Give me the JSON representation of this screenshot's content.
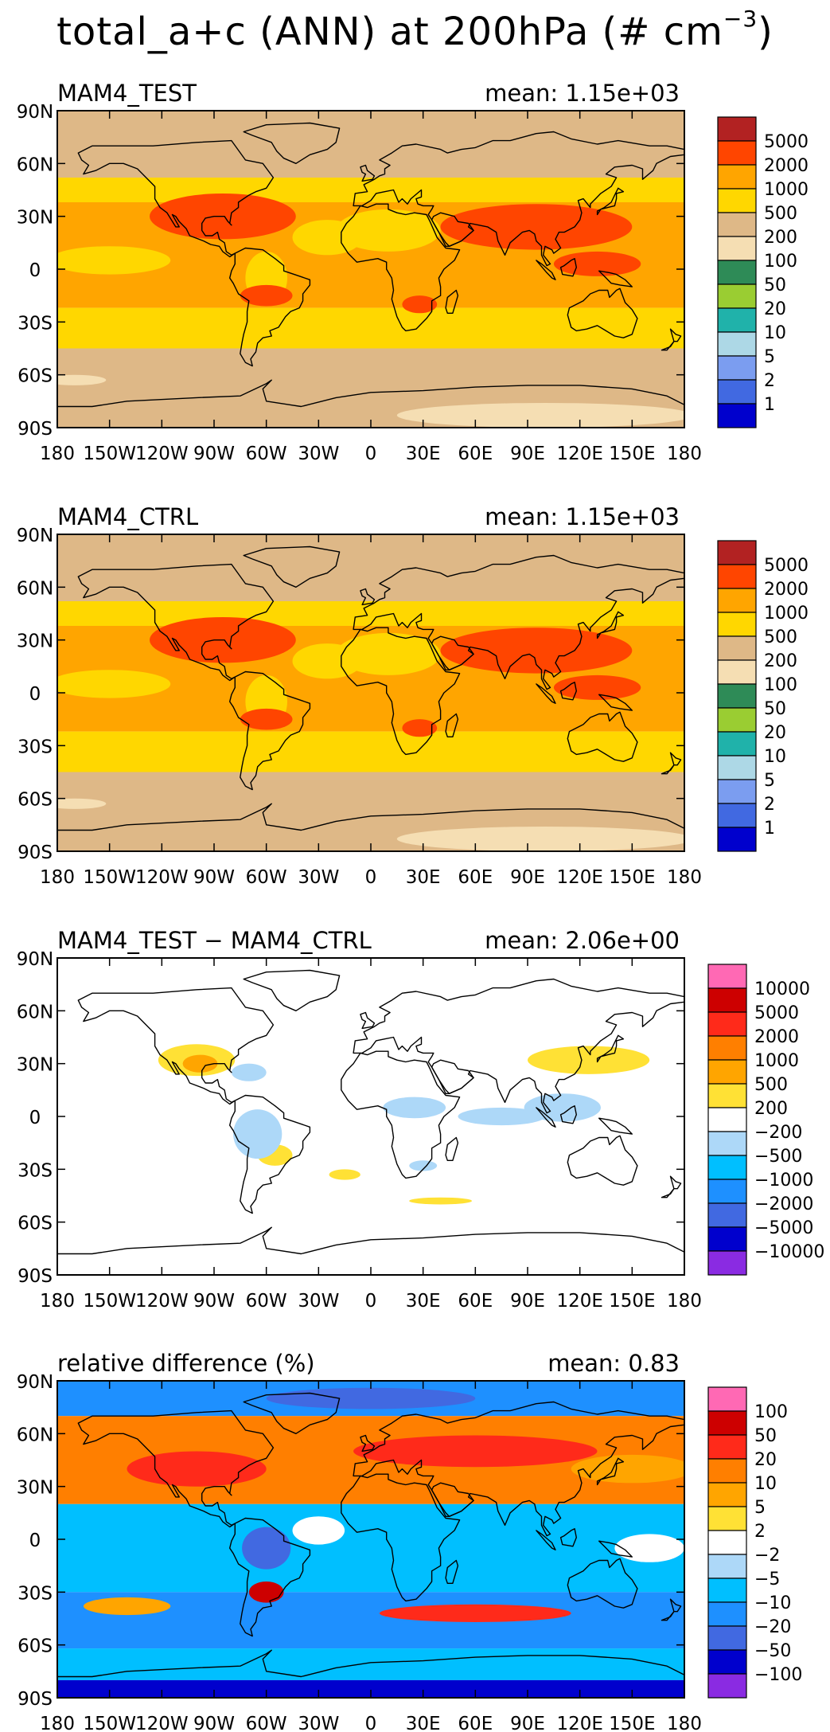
{
  "title": {
    "main": "total_a+c (ANN) at 200hPa (# cm",
    "exponent": "−3",
    "close": ")"
  },
  "lat_labels": [
    "90N",
    "60N",
    "30N",
    "0",
    "30S",
    "60S",
    "90S"
  ],
  "lon_labels": [
    "180",
    "150W",
    "120W",
    "90W",
    "60W",
    "30W",
    "0",
    "30E",
    "60E",
    "90E",
    "120E",
    "150E",
    "180"
  ],
  "panels": [
    {
      "id": "test",
      "title": "MAM4_TEST",
      "mean": "mean:  1.15e+03",
      "legend": {
        "colors": [
          "#b22222",
          "#ff4500",
          "#ffa500",
          "#ffd700",
          "#deb887",
          "#f5deb3",
          "#2e8b57",
          "#9acd32",
          "#20b2aa",
          "#add8e6",
          "#7b9df0",
          "#4169e1",
          "#0000cd"
        ],
        "labels": [
          "5000",
          "2000",
          "1000",
          "500",
          "200",
          "100",
          "50",
          "20",
          "10",
          "5",
          "2",
          "1"
        ]
      }
    },
    {
      "id": "ctrl",
      "title": "MAM4_CTRL",
      "mean": "mean:  1.15e+03",
      "legend": {
        "colors": [
          "#b22222",
          "#ff4500",
          "#ffa500",
          "#ffd700",
          "#deb887",
          "#f5deb3",
          "#2e8b57",
          "#9acd32",
          "#20b2aa",
          "#add8e6",
          "#7b9df0",
          "#4169e1",
          "#0000cd"
        ],
        "labels": [
          "5000",
          "2000",
          "1000",
          "500",
          "200",
          "100",
          "50",
          "20",
          "10",
          "5",
          "2",
          "1"
        ]
      }
    },
    {
      "id": "diff",
      "title": "MAM4_TEST − MAM4_CTRL",
      "mean": "mean:  2.06e+00",
      "legend": {
        "colors": [
          "#ff69b4",
          "#cd0000",
          "#ff2a1a",
          "#ff7f00",
          "#ffa500",
          "#ffe135",
          "#ffffff",
          "#add8f8",
          "#00bfff",
          "#1e90ff",
          "#4169e1",
          "#0000cd",
          "#8a2be2"
        ],
        "labels": [
          "10000",
          "5000",
          "2000",
          "1000",
          "500",
          "200",
          "−200",
          "−500",
          "−1000",
          "−2000",
          "−5000",
          "−10000"
        ]
      }
    },
    {
      "id": "rel",
      "title": "relative difference (%)",
      "mean": "mean:   0.83",
      "legend": {
        "colors": [
          "#ff69b4",
          "#cd0000",
          "#ff2a1a",
          "#ff7f00",
          "#ffa500",
          "#ffe135",
          "#ffffff",
          "#add8f8",
          "#00bfff",
          "#1e90ff",
          "#4169e1",
          "#0000cd",
          "#8a2be2"
        ],
        "labels": [
          "100",
          "50",
          "20",
          "10",
          "5",
          "2",
          "−2",
          "−5",
          "−10",
          "−20",
          "−50",
          "−100"
        ]
      }
    }
  ]
}
